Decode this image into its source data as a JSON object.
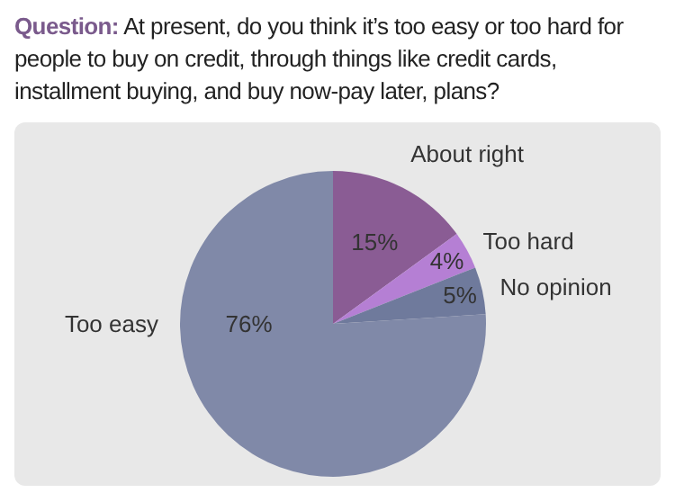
{
  "chart_data": {
    "type": "pie",
    "title": "Question: At present, do you think it’s too easy or too hard for people to buy on credit, through things like credit cards, installment buying, and buy now-pay later, plans?",
    "categories": [
      "About right",
      "Too hard",
      "No opinion",
      "Too easy"
    ],
    "values": [
      15,
      4,
      5,
      76
    ],
    "colors": [
      "#8a5c94",
      "#b57fd4",
      "#6f7a9c",
      "#8089a8"
    ],
    "value_labels": [
      "15%",
      "4%",
      "5%",
      "76%"
    ],
    "legend": false
  }
}
